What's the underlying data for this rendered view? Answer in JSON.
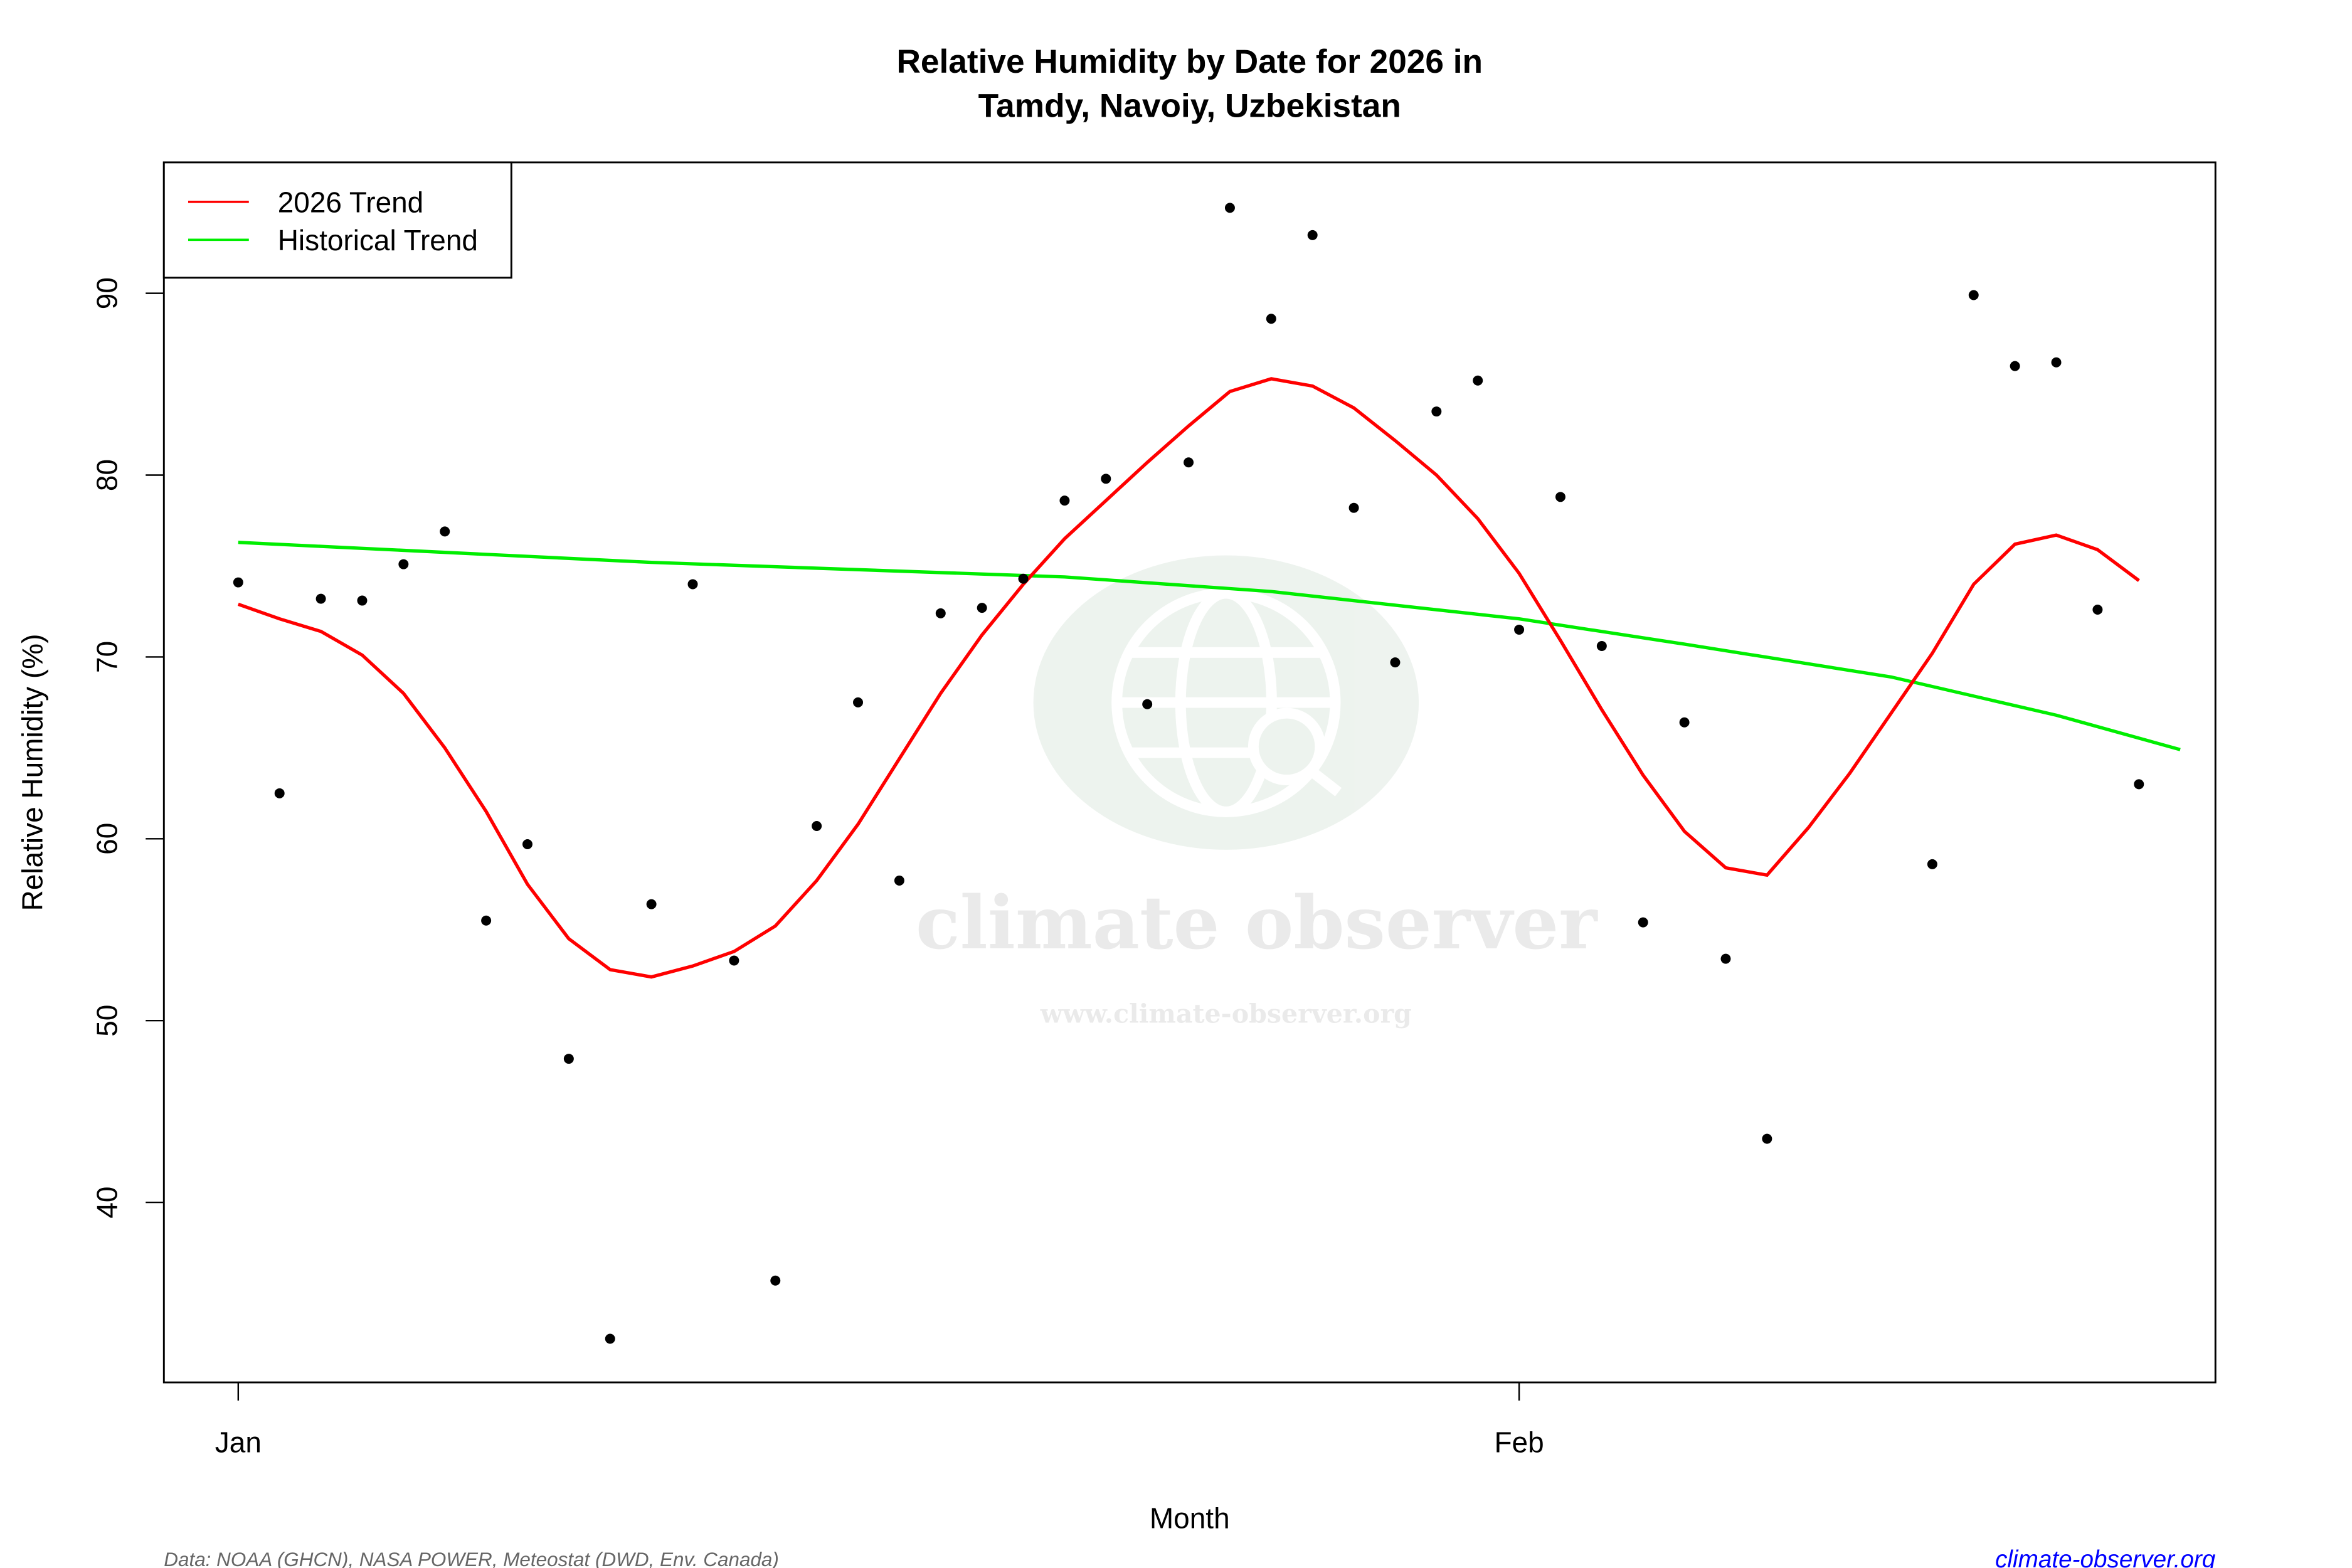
{
  "chart_data": {
    "type": "scatter",
    "title": "Relative Humidity by Date for 2026 in",
    "subtitle": "Tamdy, Navoiy, Uzbekistan",
    "xlabel": "Month",
    "ylabel": "Relative Humidity (%)",
    "x_ticks": [
      {
        "date": "2026-01-01",
        "label": "Jan"
      },
      {
        "date": "2026-02-01",
        "label": "Feb"
      }
    ],
    "y_ticks": [
      40,
      50,
      60,
      70,
      80,
      90
    ],
    "ylim": [
      30.1,
      97.2
    ],
    "grid": false,
    "legend": {
      "position": "top-left",
      "entries": [
        {
          "label": "2026 Trend",
          "color": "#ff0000"
        },
        {
          "label": "Historical Trend",
          "color": "#00ee00"
        }
      ]
    },
    "observations": {
      "color": "#000000",
      "points": [
        [
          "2026-01-01",
          74.1
        ],
        [
          "2026-01-02",
          62.5
        ],
        [
          "2026-01-03",
          73.2
        ],
        [
          "2026-01-04",
          73.1
        ],
        [
          "2026-01-05",
          75.1
        ],
        [
          "2026-01-06",
          76.9
        ],
        [
          "2026-01-07",
          55.5
        ],
        [
          "2026-01-08",
          59.7
        ],
        [
          "2026-01-09",
          47.9
        ],
        [
          "2026-01-10",
          32.5
        ],
        [
          "2026-01-11",
          56.4
        ],
        [
          "2026-01-12",
          74.0
        ],
        [
          "2026-01-13",
          53.3
        ],
        [
          "2026-01-14",
          35.7
        ],
        [
          "2026-01-15",
          60.7
        ],
        [
          "2026-01-16",
          67.5
        ],
        [
          "2026-01-17",
          57.7
        ],
        [
          "2026-01-18",
          72.4
        ],
        [
          "2026-01-19",
          72.7
        ],
        [
          "2026-01-20",
          74.3
        ],
        [
          "2026-01-21",
          78.6
        ],
        [
          "2026-01-22",
          79.8
        ],
        [
          "2026-01-23",
          67.4
        ],
        [
          "2026-01-24",
          80.7
        ],
        [
          "2026-01-25",
          94.7
        ],
        [
          "2026-01-26",
          88.6
        ],
        [
          "2026-01-27",
          93.2
        ],
        [
          "2026-01-28",
          78.2
        ],
        [
          "2026-01-29",
          69.7
        ],
        [
          "2026-01-30",
          83.5
        ],
        [
          "2026-01-31",
          85.2
        ],
        [
          "2026-02-01",
          71.5
        ],
        [
          "2026-02-02",
          78.8
        ],
        [
          "2026-02-03",
          70.6
        ],
        [
          "2026-02-04",
          55.4
        ],
        [
          "2026-02-05",
          66.4
        ],
        [
          "2026-02-06",
          53.4
        ],
        [
          "2026-02-07",
          43.5
        ],
        [
          "2026-02-11",
          58.6
        ],
        [
          "2026-02-12",
          89.9
        ],
        [
          "2026-02-13",
          86.0
        ],
        [
          "2026-02-14",
          86.2
        ],
        [
          "2026-02-15",
          72.6
        ],
        [
          "2026-02-16",
          63.0
        ]
      ]
    },
    "series": [
      {
        "name": "2026 Trend",
        "color": "#ff0000",
        "points": [
          [
            "2026-01-01",
            72.9
          ],
          [
            "2026-01-02",
            72.1
          ],
          [
            "2026-01-03",
            71.4
          ],
          [
            "2026-01-04",
            70.1
          ],
          [
            "2026-01-05",
            68.0
          ],
          [
            "2026-01-06",
            65.0
          ],
          [
            "2026-01-07",
            61.5
          ],
          [
            "2026-01-08",
            57.5
          ],
          [
            "2026-01-09",
            54.5
          ],
          [
            "2026-01-10",
            52.8
          ],
          [
            "2026-01-11",
            52.4
          ],
          [
            "2026-01-12",
            53.0
          ],
          [
            "2026-01-13",
            53.8
          ],
          [
            "2026-01-14",
            55.2
          ],
          [
            "2026-01-15",
            57.7
          ],
          [
            "2026-01-16",
            60.8
          ],
          [
            "2026-01-17",
            64.4
          ],
          [
            "2026-01-18",
            68.0
          ],
          [
            "2026-01-19",
            71.2
          ],
          [
            "2026-01-20",
            74.0
          ],
          [
            "2026-01-21",
            76.5
          ],
          [
            "2026-01-22",
            78.6
          ],
          [
            "2026-01-23",
            80.7
          ],
          [
            "2026-01-24",
            82.7
          ],
          [
            "2026-01-25",
            84.6
          ],
          [
            "2026-01-26",
            85.3
          ],
          [
            "2026-01-27",
            84.9
          ],
          [
            "2026-01-28",
            83.7
          ],
          [
            "2026-01-29",
            81.9
          ],
          [
            "2026-01-30",
            80.0
          ],
          [
            "2026-01-31",
            77.6
          ],
          [
            "2026-02-01",
            74.6
          ],
          [
            "2026-02-02",
            70.9
          ],
          [
            "2026-02-03",
            67.1
          ],
          [
            "2026-02-04",
            63.5
          ],
          [
            "2026-02-05",
            60.4
          ],
          [
            "2026-02-06",
            58.4
          ],
          [
            "2026-02-07",
            58.0
          ],
          [
            "2026-02-08",
            60.6
          ],
          [
            "2026-02-09",
            63.6
          ],
          [
            "2026-02-10",
            66.9
          ],
          [
            "2026-02-11",
            70.2
          ],
          [
            "2026-02-12",
            74.0
          ],
          [
            "2026-02-13",
            76.2
          ],
          [
            "2026-02-14",
            76.7
          ],
          [
            "2026-02-15",
            75.9
          ],
          [
            "2026-02-16",
            74.2
          ]
        ]
      },
      {
        "name": "Historical Trend",
        "color": "#00ee00",
        "points": [
          [
            "2026-01-01",
            76.3
          ],
          [
            "2026-01-11",
            75.2
          ],
          [
            "2026-01-21",
            74.4
          ],
          [
            "2026-01-26",
            73.6
          ],
          [
            "2026-02-01",
            72.1
          ],
          [
            "2026-02-05",
            70.7
          ],
          [
            "2026-02-10",
            68.9
          ],
          [
            "2026-02-14",
            66.8
          ],
          [
            "2026-02-17",
            64.9
          ]
        ]
      }
    ]
  },
  "footer": {
    "source": "Data: NOAA (GHCN), NASA POWER, Meteostat (DWD, Env. Canada)",
    "site_link": "climate-observer.org",
    "link_color": "#0000ff"
  },
  "watermark": {
    "name": "climate observer",
    "url": "www.climate-observer.org"
  }
}
